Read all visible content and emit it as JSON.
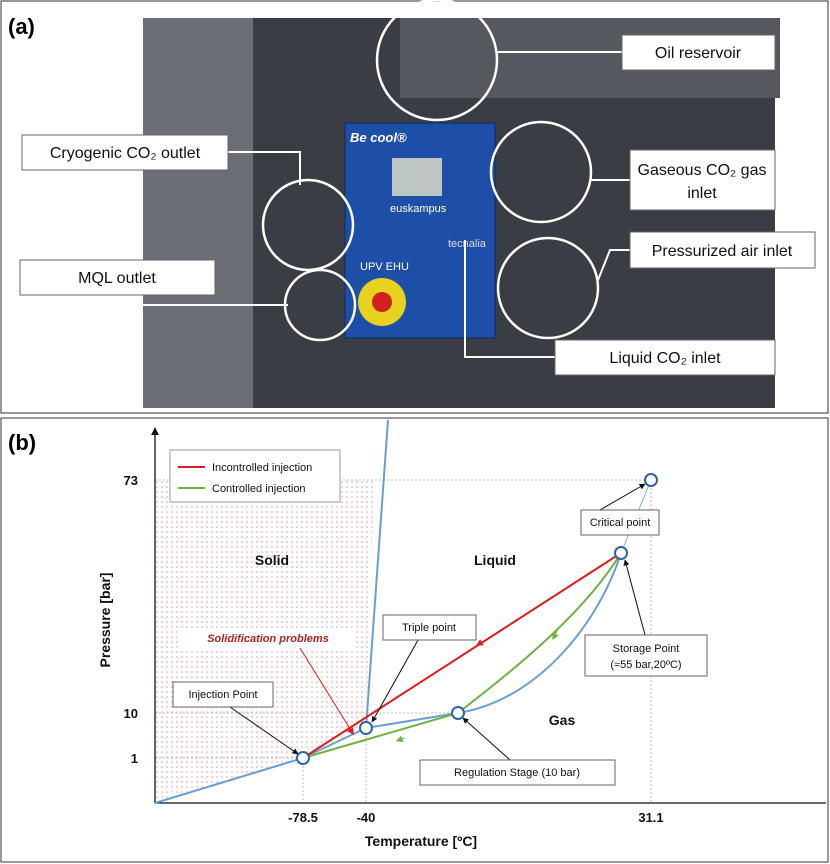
{
  "panel_a": {
    "label": "(a)",
    "photo_texts": [
      "Be cool®",
      "euskampus",
      "UPV  EHU",
      "tecnalia"
    ],
    "callouts": [
      "Oil reservoir",
      "Cryogenic CO₂ outlet",
      [
        "Gaseous CO₂ gas",
        "inlet"
      ],
      "Pressurized air inlet",
      "MQL outlet",
      "Liquid CO₂ inlet"
    ]
  },
  "panel_b": {
    "label": "(b)",
    "legend": [
      "Incontrolled injection",
      "Controlled injection"
    ],
    "y_label": "Pressure [bar]",
    "x_label": "Temperature [ºC]",
    "y_ticks": [
      "73",
      "10",
      "1"
    ],
    "x_ticks": [
      "-78.5",
      "-40",
      "31.1"
    ],
    "regions": [
      "Solid",
      "Liquid",
      "Gas"
    ],
    "annotations": [
      "Critical point",
      "Triple point",
      "Solidification problems",
      "Injection Point",
      [
        "Storage Point",
        "(≈55 bar,20ºC)"
      ],
      "Regulation Stage (10 bar)"
    ]
  }
}
